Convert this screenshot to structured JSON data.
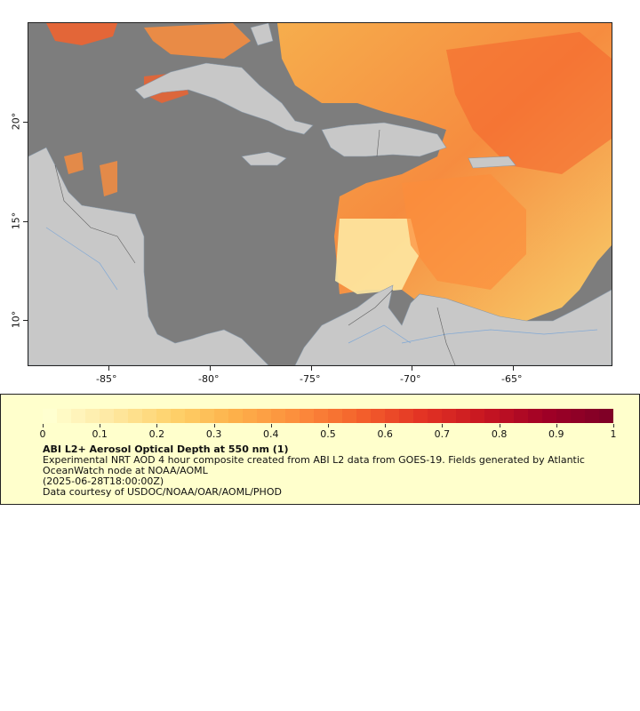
{
  "map": {
    "lon_ticks": [
      "-85°",
      "-80°",
      "-75°",
      "-70°",
      "-65°"
    ],
    "lat_ticks": [
      "20°",
      "15°",
      "10°"
    ]
  },
  "legend": {
    "colorbar_ticks": [
      "0",
      "0.1",
      "0.2",
      "0.3",
      "0.4",
      "0.5",
      "0.6",
      "0.7",
      "0.8",
      "0.9",
      "1"
    ],
    "colorbar_range": [
      0,
      1
    ],
    "colors": [
      "#ffffd0",
      "#fee8a2",
      "#fed26a",
      "#fdb04a",
      "#fc8d3c",
      "#f4622c",
      "#e33424",
      "#c81721",
      "#a00026",
      "#800026"
    ],
    "title": "ABI L2+ Aerosol Optical Depth at 550 nm (1)",
    "description": "Experimental NRT AOD 4 hour composite created from ABI L2 data from GOES-19. Fields generated by Atlantic OceanWatch node at NOAA/AOML",
    "timestamp": "(2025-06-28T18:00:00Z)",
    "credit": "Data courtesy of USDOC/NOAA/OAR/AOML/PHOD"
  },
  "colors": {
    "no_data": "#7d7d7d",
    "land": "#c8c8c8",
    "panel_bg": "#ffffcc"
  }
}
